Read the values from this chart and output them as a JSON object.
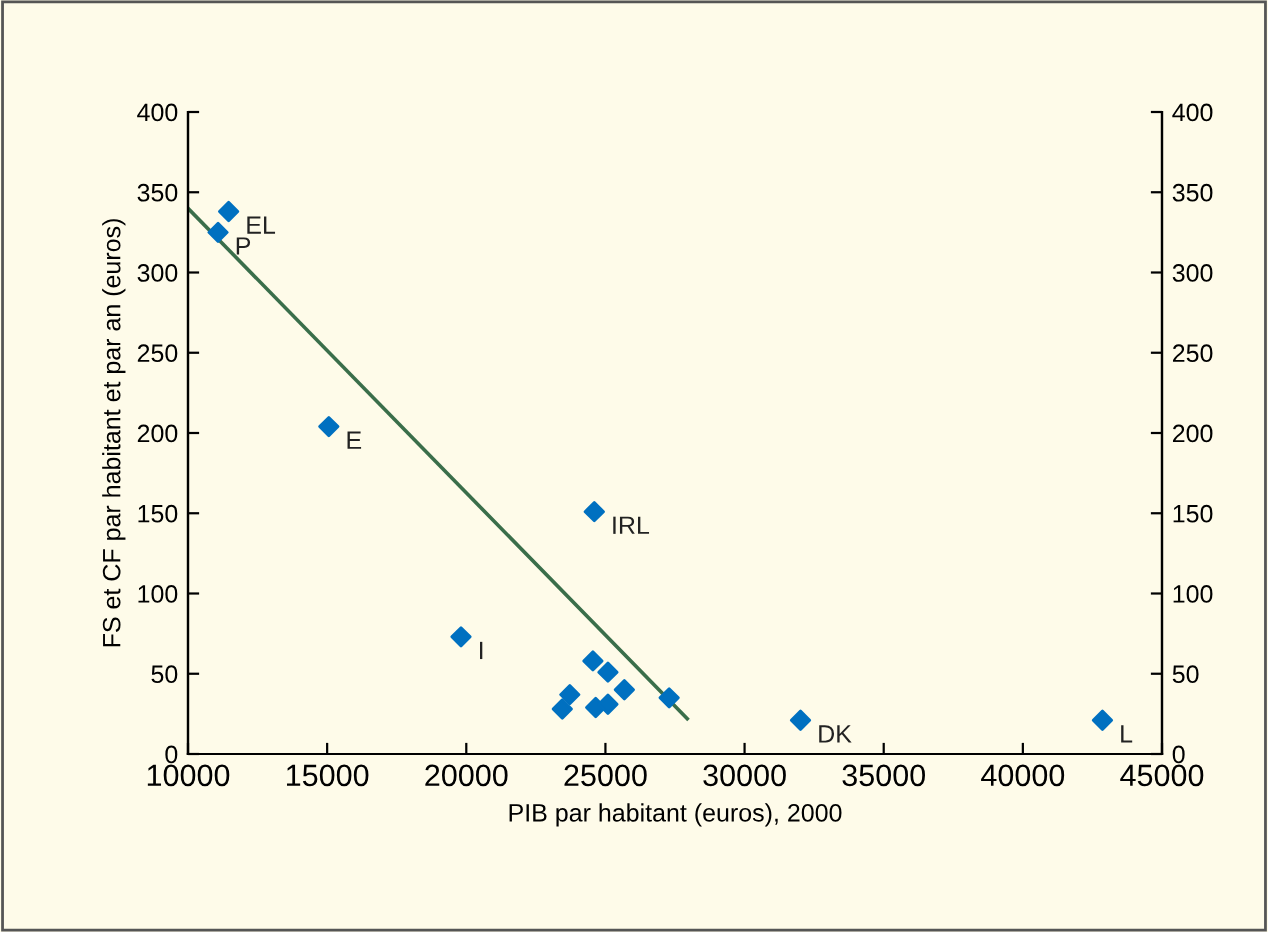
{
  "chart_data": {
    "type": "scatter",
    "xlabel": "PIB par habitant (euros), 2000",
    "ylabel": "FS et CF par habitant et par an (euros)",
    "xlim": [
      10000,
      45000
    ],
    "xticks": [
      10000,
      15000,
      20000,
      25000,
      30000,
      35000,
      40000,
      45000
    ],
    "ylim": [
      0,
      400
    ],
    "yticks": [
      0,
      50,
      100,
      150,
      200,
      250,
      300,
      350,
      400
    ],
    "y2lim": [
      0,
      400
    ],
    "y2ticks": [
      0,
      50,
      100,
      150,
      200,
      250,
      300,
      350,
      400
    ],
    "grid": false,
    "legend": false,
    "series": [
      {
        "marker": "diamond",
        "color": "#0070c0",
        "x": [
          11460,
          11080,
          15060,
          24600,
          19810,
          24550,
          25090,
          25680,
          27290,
          23720,
          23450,
          24650,
          25090,
          32010,
          42860
        ],
        "values": [
          338,
          325,
          204,
          151,
          73,
          58,
          51,
          40,
          35,
          37,
          28,
          29,
          31,
          21,
          21
        ]
      },
      {
        "type": "line",
        "marker": "none",
        "color": "#3a6e4a",
        "x": [
          10000,
          27940
        ],
        "values": [
          340,
          22
        ]
      }
    ],
    "annotations": [
      {
        "text": "EL",
        "x": 11460,
        "y": 338
      },
      {
        "text": "P",
        "x": 11080,
        "y": 325
      },
      {
        "text": "E",
        "x": 15060,
        "y": 204
      },
      {
        "text": "IRL",
        "x": 24600,
        "y": 151
      },
      {
        "text": "I",
        "x": 19810,
        "y": 73
      },
      {
        "text": "DK",
        "x": 32010,
        "y": 21
      },
      {
        "text": "L",
        "x": 42860,
        "y": 21
      }
    ]
  }
}
